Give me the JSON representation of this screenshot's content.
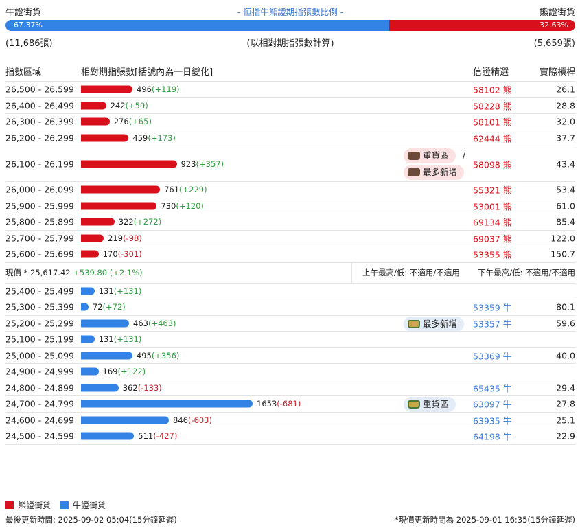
{
  "top": {
    "bull_label": "牛證街貨",
    "title": "- 恒指牛熊證期指張數比例 -",
    "bear_label": "熊證街貨"
  },
  "ratio": {
    "bull_pct": "67.37%",
    "bear_pct": "32.63%",
    "bull_fraction": 0.6737
  },
  "counts": {
    "bull": "(11,686張)",
    "note": "(以相對期指張數計算)",
    "bear": "(5,659張)"
  },
  "headers": {
    "range": "指數區域",
    "contracts": "相對期指張數[括號內為一日變化]",
    "warrant": "信證精選",
    "leverage": "實際槓桿"
  },
  "bear_rows": [
    {
      "range": "26,500 - 26,599",
      "value": 496,
      "value_text": "496",
      "change": "(+119)",
      "dir": "pos",
      "code": "58102 熊",
      "leverage": "26.1"
    },
    {
      "range": "26,400 - 26,499",
      "value": 242,
      "value_text": "242",
      "change": "(+59)",
      "dir": "pos",
      "code": "58228 熊",
      "leverage": "28.8"
    },
    {
      "range": "26,300 - 26,399",
      "value": 276,
      "value_text": "276",
      "change": "(+65)",
      "dir": "pos",
      "code": "58101 熊",
      "leverage": "32.0"
    },
    {
      "range": "26,200 - 26,299",
      "value": 459,
      "value_text": "459",
      "change": "(+173)",
      "dir": "pos",
      "code": "62444 熊",
      "leverage": "37.7"
    },
    {
      "range": "26,100 - 26,199",
      "value": 923,
      "value_text": "923",
      "change": "(+357)",
      "dir": "pos",
      "code": "58098 熊",
      "leverage": "43.4",
      "tags": [
        "重貨區",
        "最多新增"
      ]
    },
    {
      "range": "26,000 - 26,099",
      "value": 761,
      "value_text": "761",
      "change": "(+229)",
      "dir": "pos",
      "code": "55321 熊",
      "leverage": "53.4"
    },
    {
      "range": "25,900 - 25,999",
      "value": 730,
      "value_text": "730",
      "change": "(+120)",
      "dir": "pos",
      "code": "53001 熊",
      "leverage": "61.0"
    },
    {
      "range": "25,800 - 25,899",
      "value": 322,
      "value_text": "322",
      "change": "(+272)",
      "dir": "pos",
      "code": "69134 熊",
      "leverage": "85.4"
    },
    {
      "range": "25,700 - 25,799",
      "value": 219,
      "value_text": "219",
      "change": "(-98)",
      "dir": "neg",
      "code": "69037 熊",
      "leverage": "122.0"
    },
    {
      "range": "25,600 - 25,699",
      "value": 170,
      "value_text": "170",
      "change": "(-301)",
      "dir": "neg",
      "code": "53355 熊",
      "leverage": "150.7"
    }
  ],
  "price": {
    "label": "現價 *",
    "value": "25,617.42",
    "change": "+539.80 (+2.1%)",
    "am": "上午最高/低: 不適用/不適用",
    "pm": "下午最高/低: 不適用/不適用"
  },
  "bull_rows": [
    {
      "range": "25,400 - 25,499",
      "value": 131,
      "value_text": "131",
      "change": "(+131)",
      "dir": "pos",
      "code": "",
      "leverage": ""
    },
    {
      "range": "25,300 - 25,399",
      "value": 72,
      "value_text": "72",
      "change": "(+72)",
      "dir": "pos",
      "code": "53359 牛",
      "leverage": "80.1"
    },
    {
      "range": "25,200 - 25,299",
      "value": 463,
      "value_text": "463",
      "change": "(+463)",
      "dir": "pos",
      "code": "53357 牛",
      "leverage": "59.6",
      "tags": [
        "最多新增"
      ]
    },
    {
      "range": "25,100 - 25,199",
      "value": 131,
      "value_text": "131",
      "change": "(+131)",
      "dir": "pos",
      "code": "",
      "leverage": ""
    },
    {
      "range": "25,000 - 25,099",
      "value": 495,
      "value_text": "495",
      "change": "(+356)",
      "dir": "pos",
      "code": "53369 牛",
      "leverage": "40.0"
    },
    {
      "range": "24,900 - 24,999",
      "value": 169,
      "value_text": "169",
      "change": "(+122)",
      "dir": "pos",
      "code": "",
      "leverage": ""
    },
    {
      "range": "24,800 - 24,899",
      "value": 362,
      "value_text": "362",
      "change": "(-133)",
      "dir": "neg",
      "code": "65435 牛",
      "leverage": "29.4"
    },
    {
      "range": "24,700 - 24,799",
      "value": 1653,
      "value_text": "1653",
      "change": "(-681)",
      "dir": "neg",
      "code": "63097 牛",
      "leverage": "27.8",
      "tags": [
        "重貨區"
      ]
    },
    {
      "range": "24,600 - 24,699",
      "value": 846,
      "value_text": "846",
      "change": "(-603)",
      "dir": "neg",
      "code": "63935 牛",
      "leverage": "25.1"
    },
    {
      "range": "24,500 - 24,599",
      "value": 511,
      "value_text": "511",
      "change": "(-427)",
      "dir": "neg",
      "code": "64198 牛",
      "leverage": "22.9"
    }
  ],
  "separator": "/",
  "legend": {
    "bear": "熊證街貨",
    "bull": "牛證街貨"
  },
  "footer": {
    "updated": "最後更新時間: 2025-09-02 05:04(15分鐘延遲)",
    "price_updated": "*現價更新時間為 2025-09-01 16:35(15分鐘延遲)"
  },
  "colors": {
    "bear": "#d9101b",
    "bull": "#3383e6",
    "positive": "#2e9e3e",
    "negative": "#c8202a"
  }
}
